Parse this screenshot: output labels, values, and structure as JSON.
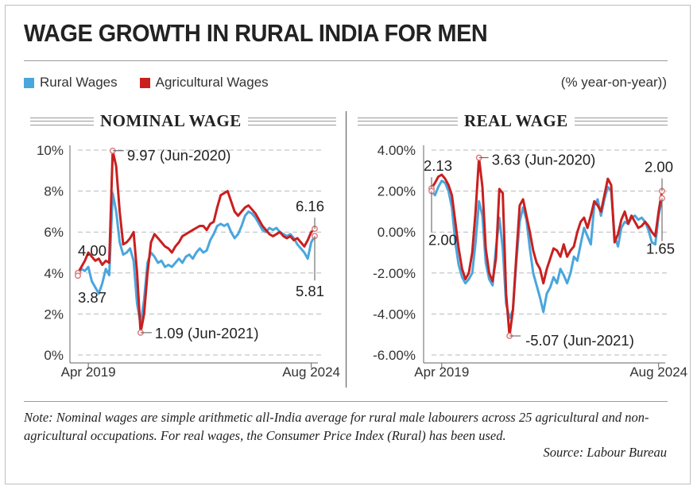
{
  "title": "WAGE GROWTH IN RURAL INDIA FOR MEN",
  "units_label": "(% year-on-year))",
  "legend": [
    {
      "name": "Rural Wages",
      "color": "#4aa6dd"
    },
    {
      "name": "Agricultural Wages",
      "color": "#c8201f"
    }
  ],
  "colors": {
    "rural": "#4aa6dd",
    "agri": "#c8201f",
    "marker": "#e07a7a"
  },
  "note": "Note: Nominal wages are simple arithmetic all-India average for rural male labourers across 25 agricultural and non-agricultural occupations. For real wages, the Consumer Price Index (Rural) has been used.",
  "source": "Source: Labour Bureau",
  "chart_data": [
    {
      "type": "line",
      "title": "NOMINAL WAGE",
      "ylim": [
        0,
        10
      ],
      "yticks": [
        0,
        2,
        4,
        6,
        8,
        10
      ],
      "ytick_labels": [
        "0%",
        "2%",
        "4%",
        "6%",
        "8%",
        "10%"
      ],
      "xtick_labels": [
        "Apr 2019",
        "Aug 2024"
      ],
      "xtick_index": [
        3,
        67
      ],
      "grid": true,
      "legend_position": "top-left",
      "series": [
        {
          "name": "Rural Wages",
          "values": [
            3.87,
            4.2,
            4.1,
            4.3,
            3.6,
            3.3,
            3.0,
            3.5,
            4.2,
            3.9,
            7.9,
            7.0,
            5.5,
            4.9,
            5.0,
            5.2,
            4.6,
            2.5,
            1.5,
            2.7,
            4.5,
            5.0,
            4.8,
            4.5,
            4.6,
            4.3,
            4.4,
            4.3,
            4.5,
            4.7,
            4.5,
            4.8,
            4.9,
            4.7,
            5.0,
            5.2,
            5.0,
            5.1,
            5.6,
            5.9,
            6.3,
            6.4,
            6.3,
            6.4,
            6.0,
            5.7,
            5.9,
            6.3,
            6.8,
            7.0,
            6.9,
            6.7,
            6.4,
            6.1,
            6.0,
            6.2,
            6.1,
            6.2,
            6.0,
            5.9,
            5.8,
            5.9,
            5.7,
            5.4,
            5.2,
            5.0,
            4.7,
            5.5,
            5.81
          ]
        },
        {
          "name": "Agricultural Wages",
          "values": [
            4.0,
            4.3,
            4.6,
            5.0,
            4.8,
            4.6,
            4.7,
            4.4,
            4.6,
            4.5,
            9.97,
            9.2,
            7.0,
            5.4,
            5.5,
            5.7,
            6.0,
            4.0,
            1.09,
            2.0,
            4.0,
            5.5,
            5.9,
            5.7,
            5.5,
            5.3,
            5.2,
            5.0,
            5.3,
            5.5,
            5.8,
            5.9,
            6.0,
            6.1,
            6.2,
            6.3,
            6.3,
            6.1,
            6.4,
            6.5,
            7.2,
            7.8,
            7.9,
            8.0,
            7.5,
            7.0,
            6.8,
            7.0,
            7.2,
            7.3,
            7.1,
            6.9,
            6.6,
            6.3,
            6.1,
            5.9,
            5.8,
            5.9,
            6.0,
            5.8,
            5.7,
            5.8,
            5.6,
            5.7,
            5.5,
            5.3,
            5.6,
            6.0,
            6.16
          ]
        }
      ],
      "annotations": [
        {
          "text": "9.97 (Jun-2020)",
          "series": 1,
          "index": 10
        },
        {
          "text": "4.00",
          "series": 1,
          "index": 0
        },
        {
          "text": "3.87",
          "series": 0,
          "index": 0
        },
        {
          "text": "1.09 (Jun-2021)",
          "series": 1,
          "index": 18
        },
        {
          "text": "6.16",
          "series": 1,
          "index": 68
        },
        {
          "text": "5.81",
          "series": 0,
          "index": 68
        }
      ]
    },
    {
      "type": "line",
      "title": "REAL WAGE",
      "ylim": [
        -6,
        4
      ],
      "yticks": [
        -6,
        -4,
        -2,
        0,
        2,
        4
      ],
      "ytick_labels": [
        "-6.00%",
        "-4.00%",
        "-2.00%",
        "0.00%",
        "2.00%",
        "4.00%"
      ],
      "xtick_labels": [
        "Apr 2019",
        "Aug 2024"
      ],
      "xtick_index": [
        3,
        67
      ],
      "grid": true,
      "series": [
        {
          "name": "Rural Wages",
          "values": [
            2.0,
            1.8,
            2.2,
            2.5,
            2.4,
            2.0,
            1.2,
            -0.5,
            -1.6,
            -2.2,
            -2.5,
            -2.3,
            -2.0,
            -0.5,
            1.5,
            0.8,
            -1.5,
            -2.3,
            -2.6,
            -0.8,
            0.7,
            -0.8,
            -3.5,
            -4.2,
            -3.8,
            -1.5,
            0.5,
            1.2,
            0.6,
            -0.8,
            -2.0,
            -2.6,
            -3.2,
            -3.9,
            -3.0,
            -2.7,
            -2.2,
            -2.5,
            -1.8,
            -2.1,
            -2.5,
            -2.0,
            -1.2,
            -1.4,
            -0.6,
            0.2,
            -0.2,
            -0.6,
            1.3,
            1.6,
            0.8,
            1.6,
            2.2,
            2.0,
            -0.2,
            -0.7,
            0.2,
            0.5,
            0.4,
            0.7,
            0.8,
            0.6,
            0.7,
            0.5,
            0.1,
            -0.5,
            -0.6,
            0.8,
            1.65
          ]
        },
        {
          "name": "Agricultural Wages",
          "values": [
            2.13,
            2.4,
            2.7,
            2.8,
            2.6,
            2.3,
            1.8,
            0.5,
            -0.8,
            -1.8,
            -2.3,
            -2.0,
            -1.0,
            1.0,
            3.63,
            2.2,
            -0.8,
            -2.0,
            -2.4,
            -1.3,
            2.1,
            1.9,
            -3.0,
            -5.07,
            -3.8,
            -1.2,
            1.3,
            1.6,
            0.8,
            0.0,
            -0.9,
            -1.5,
            -1.8,
            -2.5,
            -1.8,
            -1.3,
            -0.8,
            -0.9,
            -1.2,
            -0.6,
            -1.2,
            -0.9,
            -0.7,
            0.0,
            0.5,
            0.7,
            0.2,
            0.8,
            1.5,
            1.3,
            1.0,
            1.8,
            2.6,
            2.3,
            -0.5,
            -0.1,
            0.6,
            1.0,
            0.4,
            0.8,
            0.5,
            0.2,
            0.3,
            0.5,
            0.3,
            0.0,
            -0.2,
            1.0,
            2.0
          ]
        }
      ],
      "annotations": [
        {
          "text": "2.13",
          "series": 1,
          "index": 0
        },
        {
          "text": "3.63 (Jun-2020)",
          "series": 1,
          "index": 14
        },
        {
          "text": "2.00",
          "series": 1,
          "index": 68
        },
        {
          "text": "2.00",
          "series": 0,
          "index": 0
        },
        {
          "text": "-5.07 (Jun-2021)",
          "series": 1,
          "index": 23
        },
        {
          "text": "1.65",
          "series": 0,
          "index": 68
        }
      ]
    }
  ]
}
